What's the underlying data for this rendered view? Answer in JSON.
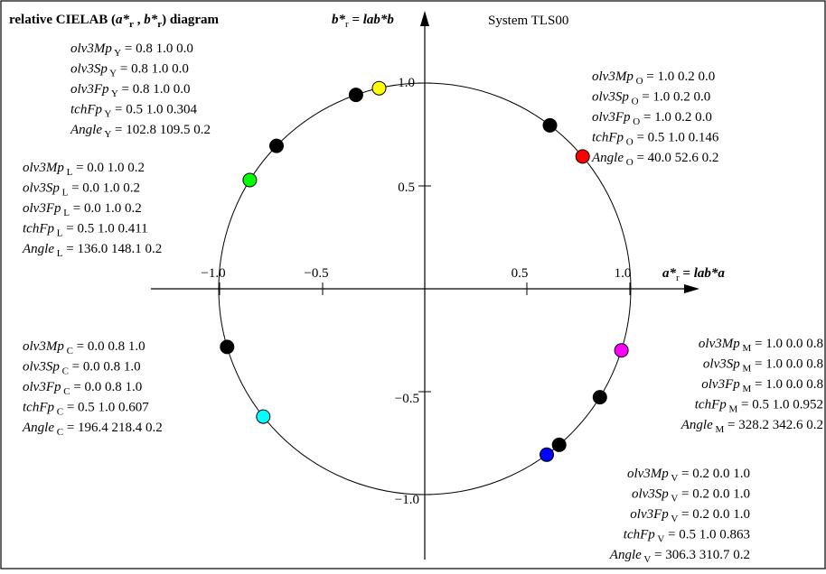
{
  "title": {
    "pre": "relative CIELAB (",
    "a": "a*",
    "a_sub": "r",
    "mid": " , ",
    "b": "b*",
    "b_sub": "r",
    "post": ") diagram"
  },
  "system_label": "System TLS00",
  "axis_b": {
    "sym": "b*",
    "sub": "r",
    "eq": " = lab*b"
  },
  "axis_a": {
    "sym": "a*",
    "sub": "r",
    "eq": " = lab*a"
  },
  "ticks_a": [
    "−1.0",
    "−0.5",
    "0.5",
    "1.0"
  ],
  "ticks_b": [
    "1.0",
    "0.5",
    "−0.5",
    "−1.0"
  ],
  "blocks": [
    {
      "sub": "Y",
      "lines": [
        {
          "name": "olv3Mp",
          "vals": "0.8  1.0  0.0"
        },
        {
          "name": "olv3Sp",
          "vals": "0.8  1.0  0.0"
        },
        {
          "name": "olv3Fp",
          "vals": "0.8  1.0  0.0"
        },
        {
          "name": "tchFp",
          "vals": "0.5  1.0  0.304"
        },
        {
          "name": "Angle",
          "vals": "102.8  109.5  0.2"
        }
      ]
    },
    {
      "sub": "O",
      "lines": [
        {
          "name": "olv3Mp",
          "vals": "1.0  0.2  0.0"
        },
        {
          "name": "olv3Sp",
          "vals": "1.0  0.2  0.0"
        },
        {
          "name": "olv3Fp",
          "vals": "1.0  0.2  0.0"
        },
        {
          "name": "tchFp",
          "vals": "0.5  1.0  0.146"
        },
        {
          "name": "Angle",
          "vals": "40.0  52.6  0.2"
        }
      ]
    },
    {
      "sub": "L",
      "lines": [
        {
          "name": "olv3Mp",
          "vals": "0.0  1.0  0.2"
        },
        {
          "name": "olv3Sp",
          "vals": "0.0  1.0  0.2"
        },
        {
          "name": "olv3Fp",
          "vals": "0.0  1.0  0.2"
        },
        {
          "name": "tchFp",
          "vals": "0.5  1.0  0.411"
        },
        {
          "name": "Angle",
          "vals": "136.0  148.1  0.2"
        }
      ]
    },
    {
      "sub": "C",
      "lines": [
        {
          "name": "olv3Mp",
          "vals": "0.0  0.8  1.0"
        },
        {
          "name": "olv3Sp",
          "vals": "0.0  0.8  1.0"
        },
        {
          "name": "olv3Fp",
          "vals": "0.0  0.8  1.0"
        },
        {
          "name": "tchFp",
          "vals": "0.5  1.0  0.607"
        },
        {
          "name": "Angle",
          "vals": "196.4  218.4  0.2"
        }
      ]
    },
    {
      "sub": "M",
      "lines": [
        {
          "name": "olv3Mp",
          "vals": "1.0  0.0  0.8"
        },
        {
          "name": "olv3Sp",
          "vals": "1.0  0.0  0.8"
        },
        {
          "name": "olv3Fp",
          "vals": "1.0  0.0  0.8"
        },
        {
          "name": "tchFp",
          "vals": "0.5  1.0  0.952"
        },
        {
          "name": "Angle",
          "vals": "328.2  342.6  0.2"
        }
      ]
    },
    {
      "sub": "V",
      "lines": [
        {
          "name": "olv3Mp",
          "vals": "0.2  0.0  1.0"
        },
        {
          "name": "olv3Sp",
          "vals": "0.2  0.0  1.0"
        },
        {
          "name": "olv3Fp",
          "vals": "0.2  0.0  1.0"
        },
        {
          "name": "tchFp",
          "vals": "0.5  1.0  0.863"
        },
        {
          "name": "Angle",
          "vals": "306.3  310.7  0.2"
        }
      ]
    }
  ],
  "chart_data": {
    "type": "scatter",
    "xlim": [
      -1.0,
      1.0
    ],
    "ylim": [
      -1.0,
      1.0
    ],
    "grid": false,
    "unit_circle": true,
    "hue_points": [
      {
        "hue": "Y",
        "angle_deg": 102.8,
        "color": "#ffff00"
      },
      {
        "hue": "Y",
        "angle_deg": 109.5,
        "color": "#000000"
      },
      {
        "hue": "O",
        "angle_deg": 40.0,
        "color": "#ff0000"
      },
      {
        "hue": "O",
        "angle_deg": 52.6,
        "color": "#000000"
      },
      {
        "hue": "L",
        "angle_deg": 136.0,
        "color": "#000000"
      },
      {
        "hue": "L",
        "angle_deg": 148.1,
        "color": "#00ff00"
      },
      {
        "hue": "C",
        "angle_deg": 196.4,
        "color": "#000000"
      },
      {
        "hue": "C",
        "angle_deg": 218.4,
        "color": "#00ffff"
      },
      {
        "hue": "M",
        "angle_deg": 328.2,
        "color": "#000000"
      },
      {
        "hue": "M",
        "angle_deg": 342.6,
        "color": "#ff00ff"
      },
      {
        "hue": "V",
        "angle_deg": 306.3,
        "color": "#0000ff"
      },
      {
        "hue": "V",
        "angle_deg": 310.7,
        "color": "#000000"
      }
    ]
  }
}
